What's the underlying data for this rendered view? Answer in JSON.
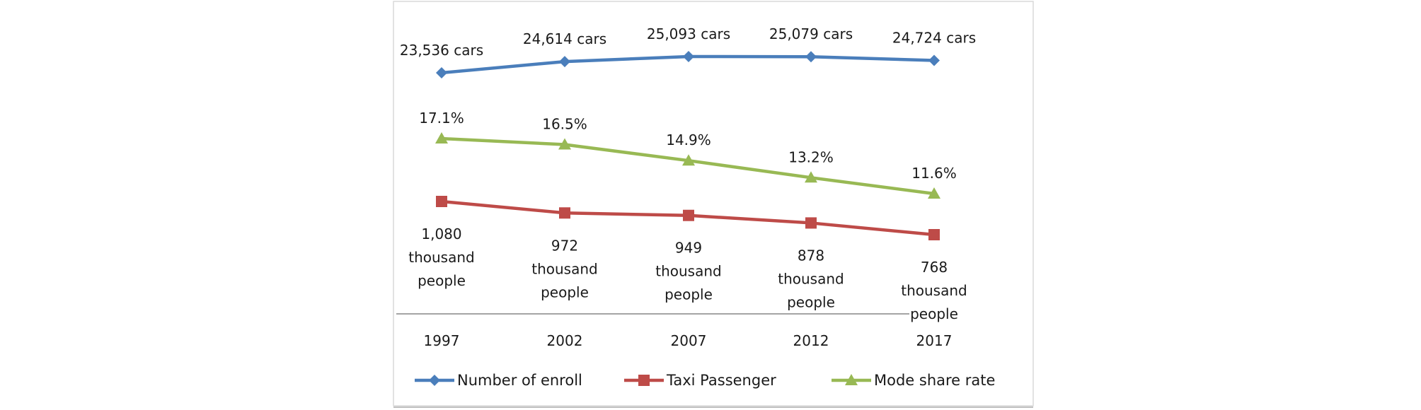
{
  "chart_data": {
    "type": "line",
    "title": "",
    "xlabel": "",
    "ylabel": "",
    "categories": [
      "1997",
      "2002",
      "2007",
      "2012",
      "2017"
    ],
    "grid": false,
    "legend_position": "bottom",
    "series": [
      {
        "name": "Number of enroll",
        "unit": "cars",
        "values": [
          23536,
          24614,
          25093,
          25079,
          24724
        ],
        "labels": [
          "23,536 cars",
          "24,614 cars",
          "25,093 cars",
          "25,079 cars",
          "24,724 cars"
        ],
        "color": "#4a7ebb",
        "marker": "diamond"
      },
      {
        "name": "Taxi Passenger",
        "unit": "thousand people",
        "values": [
          1080,
          972,
          949,
          878,
          768
        ],
        "labels": [
          [
            "1,080",
            "thousand",
            "people"
          ],
          [
            "972",
            "thousand",
            "people"
          ],
          [
            "949",
            "thousand",
            "people"
          ],
          [
            "878",
            "thousand",
            "people"
          ],
          [
            "768",
            "thousand",
            "people"
          ]
        ],
        "color": "#be4b48",
        "marker": "square"
      },
      {
        "name": "Mode share rate",
        "unit": "%",
        "values": [
          17.1,
          16.5,
          14.9,
          13.2,
          11.6
        ],
        "labels": [
          "17.1%",
          "16.5%",
          "14.9%",
          "13.2%",
          "11.6%"
        ],
        "color": "#98b954",
        "marker": "triangle"
      }
    ]
  }
}
